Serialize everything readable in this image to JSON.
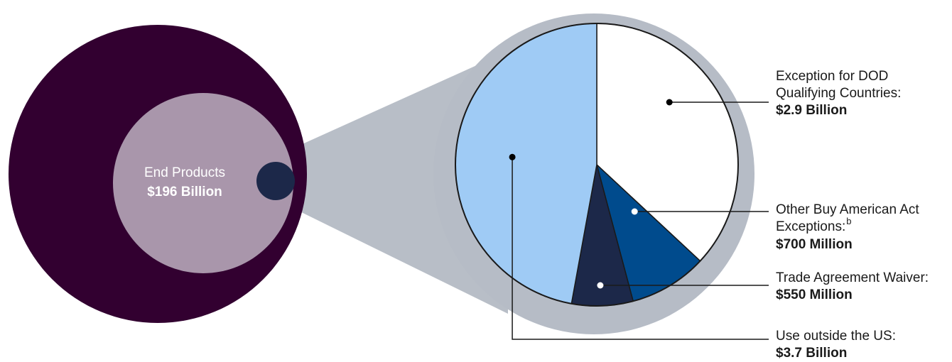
{
  "chart_data": {
    "type": "pie",
    "total": {
      "label": "End Products",
      "value_label": "$196 Billion",
      "value": 196,
      "unit": "Billion"
    },
    "slices": [
      {
        "label": "Exception for DOD Qualifying Countries:",
        "value_label": "$2.9 Billion",
        "value": 2900,
        "color": "#ffffff"
      },
      {
        "label": "Other Buy American Act Exceptions:",
        "note": "b",
        "value_label": "$700 Million",
        "value": 700,
        "color": "#004b8d"
      },
      {
        "label": "Trade Agreement Waiver:",
        "value_label": "$550 Million",
        "value": 550,
        "color": "#1c2849"
      },
      {
        "label": "Use outside the US:",
        "value_label": "$3.7 Billion",
        "value": 3700,
        "color": "#9fcbf5"
      }
    ],
    "slice_unit": "Million",
    "colors": {
      "outer_circle": "#320030",
      "inner_circle": "#a996ab",
      "zoom_dot": "#1c2849",
      "zoom_ring": "#b6bcc6",
      "zoom_cone": "#b8bec7"
    }
  }
}
